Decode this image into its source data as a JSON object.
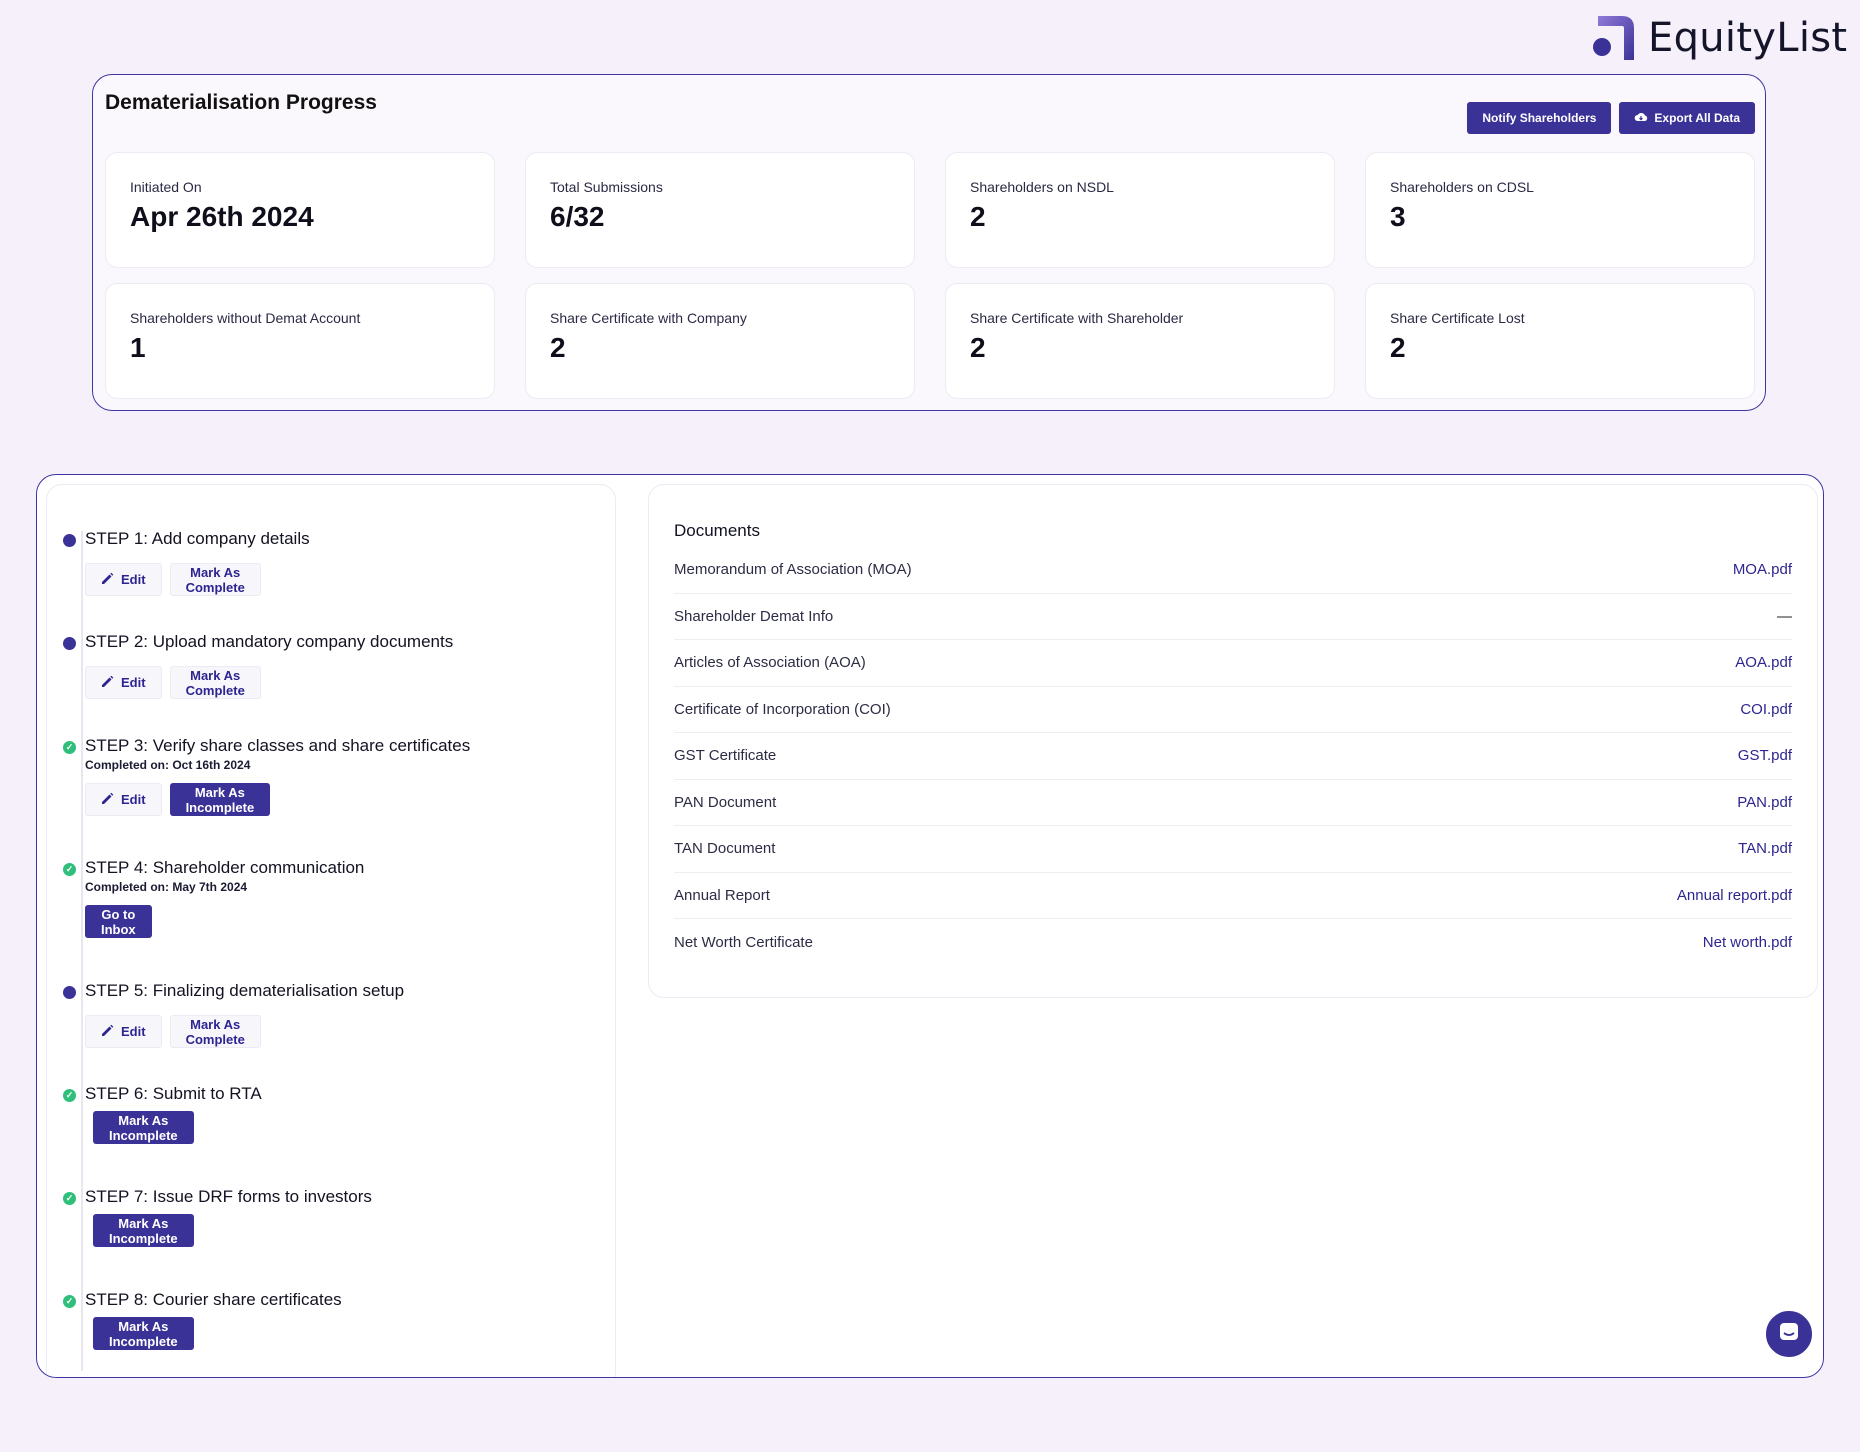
{
  "brand": {
    "name": "EquityList",
    "logo_icon": "equitylist-logo-icon"
  },
  "progress": {
    "title": "Dematerialisation Progress",
    "actions": {
      "notify": "Notify Shareholders",
      "export": "Export All Data",
      "export_icon": "cloud-download-icon"
    },
    "stats": [
      {
        "label": "Initiated On",
        "value": "Apr 26th 2024"
      },
      {
        "label": "Total Submissions",
        "value": "6/32"
      },
      {
        "label": "Shareholders on NSDL",
        "value": "2"
      },
      {
        "label": "Shareholders on CDSL",
        "value": "3"
      },
      {
        "label": "Shareholders without Demat Account",
        "value": "1"
      },
      {
        "label": "Share Certificate with Company",
        "value": "2"
      },
      {
        "label": "Share Certificate with Shareholder",
        "value": "2"
      },
      {
        "label": "Share Certificate Lost",
        "value": "2"
      }
    ]
  },
  "steps": [
    {
      "title": "STEP 1: Add company details",
      "status": "pending",
      "edit": "Edit",
      "mark": "Mark As Complete"
    },
    {
      "title": "STEP 2: Upload mandatory company documents",
      "status": "pending",
      "edit": "Edit",
      "mark": "Mark As Complete"
    },
    {
      "title": "STEP 3: Verify share classes and share certificates",
      "status": "done",
      "completed": "Completed on: Oct 16th 2024",
      "edit": "Edit",
      "mark": "Mark As Incomplete"
    },
    {
      "title": "STEP 4: Shareholder communication",
      "status": "done",
      "completed": "Completed on: May 7th 2024",
      "action": "Go to Inbox"
    },
    {
      "title": "STEP 5: Finalizing dematerialisation setup",
      "status": "pending",
      "edit": "Edit",
      "mark": "Mark As Complete"
    },
    {
      "title": "STEP 6: Submit to RTA",
      "status": "done",
      "mark": "Mark As Incomplete"
    },
    {
      "title": "STEP 7: Issue DRF forms to investors",
      "status": "done",
      "mark": "Mark As Incomplete"
    },
    {
      "title": "STEP 8: Courier share certificates",
      "status": "done",
      "mark": "Mark As Incomplete"
    }
  ],
  "documents": {
    "title": "Documents",
    "items": [
      {
        "name": "Memorandum of Association (MOA)",
        "file": "MOA.pdf"
      },
      {
        "name": "Shareholder Demat Info",
        "file": "—"
      },
      {
        "name": "Articles of Association (AOA)",
        "file": "AOA.pdf"
      },
      {
        "name": "Certificate of Incorporation (COI)",
        "file": "COI.pdf"
      },
      {
        "name": "GST Certificate",
        "file": "GST.pdf"
      },
      {
        "name": "PAN Document",
        "file": "PAN.pdf"
      },
      {
        "name": "TAN Document",
        "file": "TAN.pdf"
      },
      {
        "name": "Annual Report",
        "file": "Annual report.pdf"
      },
      {
        "name": "Net Worth Certificate",
        "file": "Net worth.pdf"
      }
    ]
  },
  "colors": {
    "accent": "#3b3297",
    "done": "#2fbf7a",
    "background": "#f6f0fb"
  },
  "chat": {
    "icon": "chat-icon"
  }
}
